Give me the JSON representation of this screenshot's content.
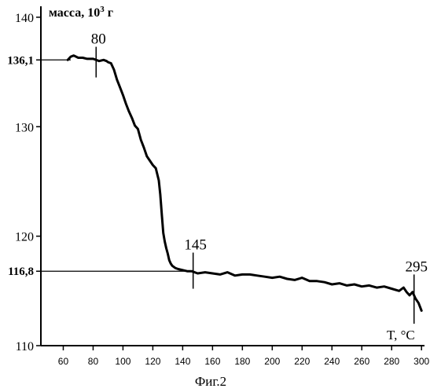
{
  "chart_data": {
    "type": "line",
    "ylabel_base": "масса, 10",
    "ylabel_exp": "3",
    "ylabel_unit": " г",
    "xlabel": "T, °C",
    "caption": "Фиг.2",
    "xlim": [
      45,
      302
    ],
    "ylim": [
      110,
      141
    ],
    "x_ticks": [
      60,
      80,
      100,
      120,
      140,
      160,
      180,
      200,
      220,
      240,
      260,
      280,
      300
    ],
    "y_ticks": [
      110,
      120,
      130,
      140
    ],
    "ref_lines": [
      {
        "label": "136,1",
        "y": 136.1,
        "x_end": 65
      },
      {
        "label": "116,8",
        "y": 116.8,
        "x_end": 147
      }
    ],
    "markers": [
      {
        "label": "80",
        "x": 82,
        "y_low": 134.5,
        "y_high": 137.3
      },
      {
        "label": "145",
        "x": 147,
        "y_low": 115.2,
        "y_high": 118.5
      },
      {
        "label": "295",
        "x": 295,
        "y_low": 112.0,
        "y_high": 116.5
      }
    ],
    "series": [
      {
        "x": [
          63,
          65,
          67,
          70,
          73,
          76,
          80,
          84,
          87,
          89,
          90,
          92,
          94,
          96,
          98,
          100,
          102,
          104,
          106,
          108,
          110,
          112,
          114,
          116,
          118,
          120,
          122,
          124,
          125,
          126,
          127,
          128,
          129,
          130,
          131,
          132,
          133,
          135,
          137,
          140,
          143,
          146,
          150,
          155,
          160,
          165,
          170,
          175,
          180,
          185,
          190,
          195,
          200,
          205,
          210,
          215,
          220,
          225,
          230,
          235,
          240,
          245,
          250,
          255,
          260,
          265,
          270,
          275,
          280,
          285,
          288,
          290,
          292,
          294,
          296,
          298,
          300
        ],
        "y": [
          136.1,
          136.4,
          136.5,
          136.3,
          136.3,
          136.2,
          136.2,
          136.0,
          136.1,
          136.0,
          135.9,
          135.8,
          135.2,
          134.3,
          133.6,
          132.9,
          132.1,
          131.4,
          130.8,
          130.1,
          129.8,
          128.8,
          128.1,
          127.3,
          126.9,
          126.5,
          126.2,
          125.1,
          123.8,
          122.0,
          120.3,
          119.5,
          118.9,
          118.4,
          117.8,
          117.5,
          117.3,
          117.1,
          117.0,
          116.9,
          116.8,
          116.8,
          116.6,
          116.7,
          116.6,
          116.5,
          116.7,
          116.4,
          116.5,
          116.5,
          116.4,
          116.3,
          116.2,
          116.3,
          116.1,
          116.0,
          116.2,
          115.9,
          115.9,
          115.8,
          115.6,
          115.7,
          115.5,
          115.6,
          115.4,
          115.5,
          115.3,
          115.4,
          115.2,
          115.0,
          115.3,
          114.9,
          114.6,
          114.9,
          114.3,
          113.9,
          113.2
        ]
      }
    ]
  }
}
